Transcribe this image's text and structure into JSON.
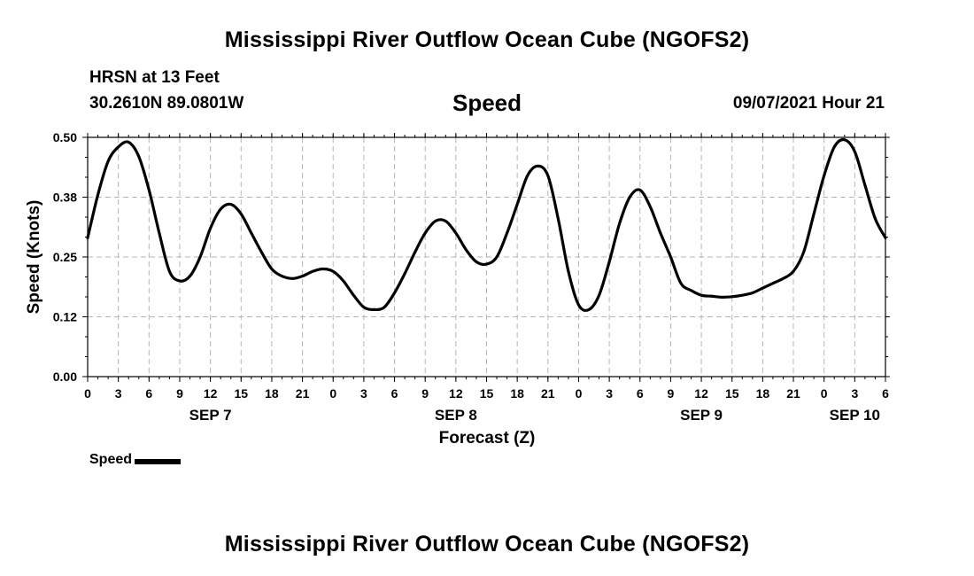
{
  "header": {
    "title": "Mississippi River Outflow Ocean Cube (NGOFS2)",
    "station": "HRSN at 13 Feet",
    "coordinates": "30.2610N  89.0801W",
    "variable": "Speed",
    "datetime": "09/07/2021 Hour 21"
  },
  "footer": {
    "title": "Mississippi River Outflow Ocean Cube (NGOFS2)"
  },
  "chart_data": {
    "type": "line",
    "xlabel": "Forecast (Z)",
    "ylabel": "Speed (Knots)",
    "ylim": [
      0,
      0.5
    ],
    "yticks": [
      "0.00",
      "0.12",
      "0.25",
      "0.38",
      "0.50"
    ],
    "xlim": [
      0,
      78
    ],
    "xtick_labels": [
      "0",
      "3",
      "6",
      "9",
      "12",
      "15",
      "18",
      "21",
      "0",
      "3",
      "6",
      "9",
      "12",
      "15",
      "18",
      "21",
      "0",
      "3",
      "6",
      "9",
      "12",
      "15",
      "18",
      "21",
      "0",
      "3",
      "6"
    ],
    "date_labels": [
      {
        "label": "SEP 7",
        "hour": 12
      },
      {
        "label": "SEP 8",
        "hour": 36
      },
      {
        "label": "SEP 9",
        "hour": 60
      },
      {
        "label": "SEP 10",
        "hour": 75
      }
    ],
    "grid": true,
    "legend": "bottom-left",
    "series": [
      {
        "name": "Speed",
        "color": "#000000",
        "x": [
          0,
          1,
          2,
          3,
          4,
          5,
          6,
          7,
          8,
          9,
          10,
          11,
          12,
          13,
          14,
          15,
          16,
          17,
          18,
          19,
          20,
          21,
          22,
          23,
          24,
          25,
          26,
          27,
          28,
          29,
          30,
          31,
          32,
          33,
          34,
          35,
          36,
          37,
          38,
          39,
          40,
          41,
          42,
          43,
          44,
          45,
          46,
          47,
          48,
          49,
          50,
          51,
          52,
          53,
          54,
          55,
          56,
          57,
          58,
          59,
          60,
          61,
          62,
          63,
          64,
          65,
          66,
          67,
          68,
          69,
          70,
          71,
          72,
          73,
          74,
          75,
          76,
          77,
          78
        ],
        "values": [
          0.29,
          0.38,
          0.45,
          0.48,
          0.49,
          0.46,
          0.39,
          0.3,
          0.22,
          0.2,
          0.21,
          0.25,
          0.31,
          0.35,
          0.36,
          0.34,
          0.3,
          0.26,
          0.225,
          0.21,
          0.205,
          0.21,
          0.22,
          0.225,
          0.22,
          0.2,
          0.17,
          0.145,
          0.14,
          0.145,
          0.175,
          0.215,
          0.26,
          0.3,
          0.325,
          0.325,
          0.3,
          0.265,
          0.24,
          0.235,
          0.25,
          0.3,
          0.36,
          0.42,
          0.44,
          0.42,
          0.33,
          0.22,
          0.15,
          0.14,
          0.17,
          0.24,
          0.32,
          0.375,
          0.39,
          0.355,
          0.3,
          0.25,
          0.195,
          0.18,
          0.17,
          0.168,
          0.166,
          0.167,
          0.17,
          0.175,
          0.185,
          0.195,
          0.205,
          0.22,
          0.26,
          0.34,
          0.42,
          0.48,
          0.495,
          0.47,
          0.4,
          0.33,
          0.29
        ]
      }
    ]
  }
}
